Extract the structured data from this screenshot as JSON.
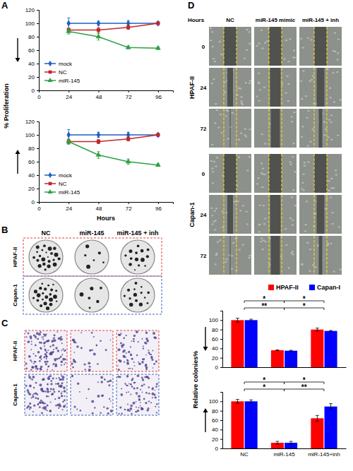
{
  "chart_data": [
    {
      "type": "line",
      "y_label": "% Proliferation",
      "x": [
        24,
        48,
        72,
        96
      ],
      "xlim": [
        0,
        108
      ],
      "xticks": [
        0,
        24,
        48,
        72,
        96
      ],
      "ylim": [
        0,
        120
      ],
      "yticks": [
        0,
        20,
        40,
        60,
        80,
        100,
        120
      ],
      "legend": "bottom-left",
      "series": [
        {
          "name": "mock",
          "color": "#1f5fbf",
          "marker": "diamond",
          "values": [
            100,
            100,
            100,
            100
          ],
          "errors": [
            8,
            3,
            4,
            2
          ]
        },
        {
          "name": "NC",
          "color": "#c0272d",
          "marker": "square",
          "values": [
            90,
            90,
            94,
            100
          ],
          "errors": [
            3,
            4,
            3,
            1
          ]
        },
        {
          "name": "miR-145",
          "color": "#2ea043",
          "marker": "triangle",
          "values": [
            88,
            80,
            64,
            63
          ],
          "errors": [
            4,
            5,
            2,
            2
          ]
        }
      ]
    },
    {
      "type": "line",
      "x_label": "Hours",
      "x": [
        24,
        48,
        72,
        96
      ],
      "xlim": [
        0,
        108
      ],
      "xticks": [
        0,
        24,
        48,
        72,
        96
      ],
      "ylim": [
        0,
        120
      ],
      "yticks": [
        0,
        20,
        40,
        60,
        80,
        100,
        120
      ],
      "legend": "bottom-left",
      "series": [
        {
          "name": "mock",
          "color": "#1f5fbf",
          "marker": "diamond",
          "values": [
            100,
            100,
            100,
            100
          ],
          "errors": [
            8,
            4,
            4,
            2
          ]
        },
        {
          "name": "NC",
          "color": "#c0272d",
          "marker": "square",
          "values": [
            90,
            90,
            94,
            100
          ],
          "errors": [
            3,
            3,
            3,
            1
          ]
        },
        {
          "name": "miR-145",
          "color": "#2ea043",
          "marker": "triangle",
          "values": [
            90,
            70,
            60,
            55
          ],
          "errors": [
            4,
            5,
            4,
            2
          ]
        }
      ]
    },
    {
      "type": "bar",
      "categories": [
        "NC",
        "miR-145",
        "miR-145+inh"
      ],
      "ylim": [
        0,
        120
      ],
      "yticks": [
        0,
        20,
        40,
        60,
        80,
        100
      ],
      "tick_labels": "y",
      "legend": "top-right",
      "series": [
        {
          "name": "HPAF-II",
          "color": "#ff0000",
          "values": [
            100,
            36,
            80
          ],
          "errors": [
            4,
            1,
            3
          ]
        },
        {
          "name": "Capan-I",
          "color": "#0000ff",
          "values": [
            100,
            35,
            77
          ],
          "errors": [
            2,
            1,
            1
          ]
        }
      ],
      "annotations": [
        {
          "text": "**",
          "between": [
            "NC",
            "miR-145"
          ]
        },
        {
          "text": "*",
          "between": [
            "NC",
            "miR-145"
          ]
        },
        {
          "text": "*",
          "between": [
            "miR-145",
            "miR-145+inh"
          ]
        },
        {
          "text": "*",
          "between": [
            "miR-145",
            "miR-145+inh"
          ]
        }
      ]
    },
    {
      "type": "bar",
      "y_label": "Relative colonies%",
      "categories": [
        "NC",
        "miR-145",
        "miR-145+inh"
      ],
      "ylim": [
        0,
        120
      ],
      "yticks": [
        0,
        20,
        40,
        60,
        80,
        100
      ],
      "series": [
        {
          "color": "#ff0000",
          "values": [
            100,
            12,
            64
          ],
          "errors": [
            4,
            3,
            6
          ]
        },
        {
          "color": "#0000ff",
          "values": [
            100,
            12,
            89
          ],
          "errors": [
            3,
            3,
            6
          ]
        }
      ],
      "annotations": [
        {
          "text": "*",
          "between": [
            "NC",
            "miR-145"
          ]
        },
        {
          "text": "*",
          "between": [
            "NC",
            "miR-145"
          ]
        },
        {
          "text": "**",
          "between": [
            "miR-145",
            "miR-145+inh"
          ]
        },
        {
          "text": "*",
          "between": [
            "miR-145",
            "miR-145+inh"
          ]
        }
      ]
    }
  ],
  "figure": {
    "panel_labels": [
      "A",
      "B",
      "C",
      "D"
    ],
    "colony_columns": [
      "NC",
      "miR-145",
      "miR-145 + inh"
    ],
    "colony_rows": [
      "HPAF-II",
      "Capan-1"
    ],
    "invasion_rows": [
      "HPAF-II",
      "Capan-1"
    ],
    "wound_header": "Hours",
    "wound_columns": [
      "NC",
      "miR-145 mimic",
      "miR-145 + inh"
    ],
    "wound_rows": [
      "HPAF-II",
      "Capan-1"
    ],
    "wound_times": [
      0,
      24,
      72
    ]
  }
}
